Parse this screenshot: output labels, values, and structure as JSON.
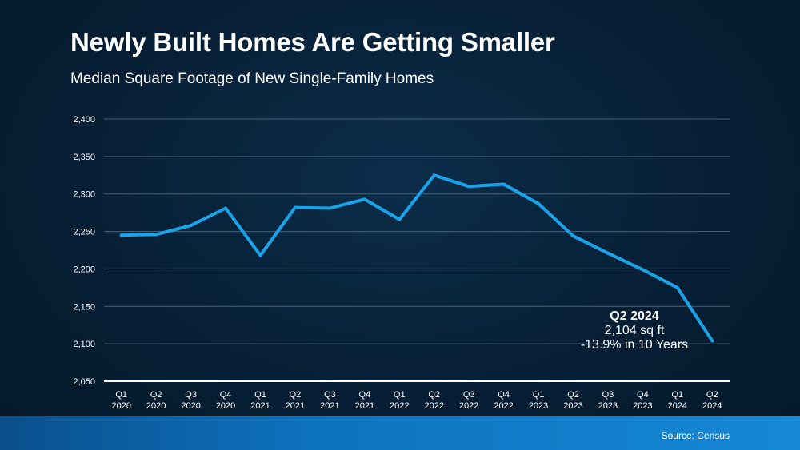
{
  "title": "Newly Built Homes Are Getting Smaller",
  "subtitle": "Median Square Footage of New Single-Family Homes",
  "source": "Source: Census",
  "colors": {
    "line": "#1aa3e8",
    "grid": "#4a6177",
    "axis": "#ffffff",
    "footer": "#0d73bf"
  },
  "annotation": {
    "line1": "Q2 2024",
    "line2": "2,104 sq ft",
    "line3": "-13.9% in 10 Years"
  },
  "chart_data": {
    "type": "line",
    "title": "Newly Built Homes Are Getting Smaller",
    "subtitle": "Median Square Footage of New Single-Family Homes",
    "categories": [
      [
        "Q1",
        "2020"
      ],
      [
        "Q2",
        "2020"
      ],
      [
        "Q3",
        "2020"
      ],
      [
        "Q4",
        "2020"
      ],
      [
        "Q1",
        "2021"
      ],
      [
        "Q2",
        "2021"
      ],
      [
        "Q3",
        "2021"
      ],
      [
        "Q4",
        "2021"
      ],
      [
        "Q1",
        "2022"
      ],
      [
        "Q2",
        "2022"
      ],
      [
        "Q3",
        "2022"
      ],
      [
        "Q4",
        "2022"
      ],
      [
        "Q1",
        "2023"
      ],
      [
        "Q2",
        "2023"
      ],
      [
        "Q3",
        "2023"
      ],
      [
        "Q4",
        "2023"
      ],
      [
        "Q1",
        "2024"
      ],
      [
        "Q2",
        "2024"
      ]
    ],
    "values": [
      2245,
      2246,
      2258,
      2281,
      2218,
      2282,
      2281,
      2293,
      2266,
      2325,
      2310,
      2313,
      2287,
      2244,
      2221,
      2199,
      2175,
      2104
    ],
    "ylim": [
      2050,
      2400
    ],
    "yticks": [
      2050,
      2100,
      2150,
      2200,
      2250,
      2300,
      2350,
      2400
    ],
    "ytick_labels": [
      "2,050",
      "2,100",
      "2,150",
      "2,200",
      "2,250",
      "2,300",
      "2,350",
      "2,400"
    ],
    "grid": true,
    "legend": "none"
  }
}
